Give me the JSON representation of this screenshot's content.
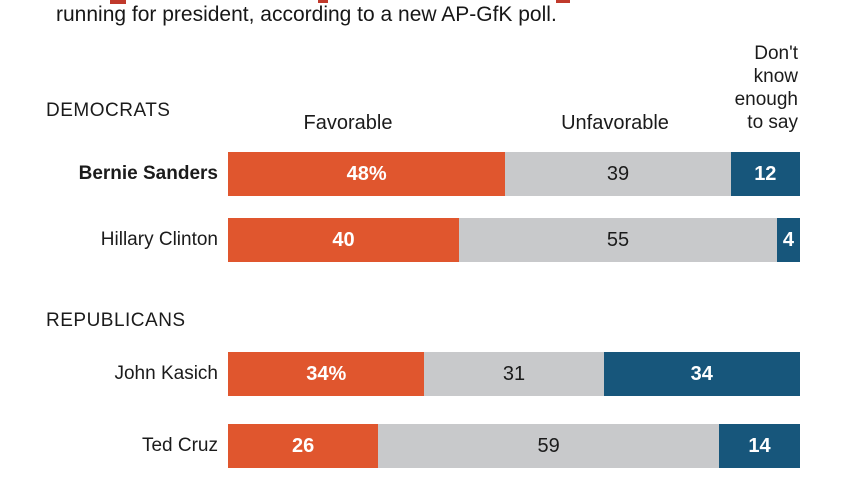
{
  "title": "running for president, according to a new AP-GfK poll.",
  "column_headers": {
    "favorable": "Favorable",
    "unfavorable": "Unfavorable",
    "dont_know": "Don't\nknow\nenough\nto say"
  },
  "colors": {
    "favorable": "#e0562e",
    "unfavorable": "#c8c9cb",
    "dont_know": "#17567b",
    "clipped_fragment": "#c0392b"
  },
  "chart_data": {
    "type": "bar",
    "stacked": true,
    "orientation": "horizontal",
    "unit": "percent",
    "title": "running for president, according to a new AP-GfK poll.",
    "series_names": [
      "Favorable",
      "Unfavorable",
      "Don't know enough to say"
    ],
    "xlim": [
      0,
      100
    ],
    "grid": false,
    "legend_position": "column-headers-top",
    "groups": [
      {
        "label": "DEMOCRATS",
        "rows": [
          {
            "name": "Bernie Sanders",
            "bold": true,
            "segments": [
              {
                "series": "favorable",
                "value": 48,
                "label": "48%"
              },
              {
                "series": "unfavorable",
                "value": 39,
                "label": "39"
              },
              {
                "series": "dont_know",
                "value": 12,
                "label": "12"
              }
            ]
          },
          {
            "name": "Hillary Clinton",
            "bold": false,
            "segments": [
              {
                "series": "favorable",
                "value": 40,
                "label": "40"
              },
              {
                "series": "unfavorable",
                "value": 55,
                "label": "55"
              },
              {
                "series": "dont_know",
                "value": 4,
                "label": "4"
              }
            ]
          }
        ]
      },
      {
        "label": "REPUBLICANS",
        "rows": [
          {
            "name": "John Kasich",
            "bold": false,
            "segments": [
              {
                "series": "favorable",
                "value": 34,
                "label": "34%"
              },
              {
                "series": "unfavorable",
                "value": 31,
                "label": "31"
              },
              {
                "series": "dont_know",
                "value": 34,
                "label": "34"
              }
            ]
          },
          {
            "name": "Ted Cruz",
            "bold": false,
            "segments": [
              {
                "series": "favorable",
                "value": 26,
                "label": "26"
              },
              {
                "series": "unfavorable",
                "value": 59,
                "label": "59"
              },
              {
                "series": "dont_know",
                "value": 14,
                "label": "14"
              }
            ]
          }
        ]
      }
    ]
  }
}
